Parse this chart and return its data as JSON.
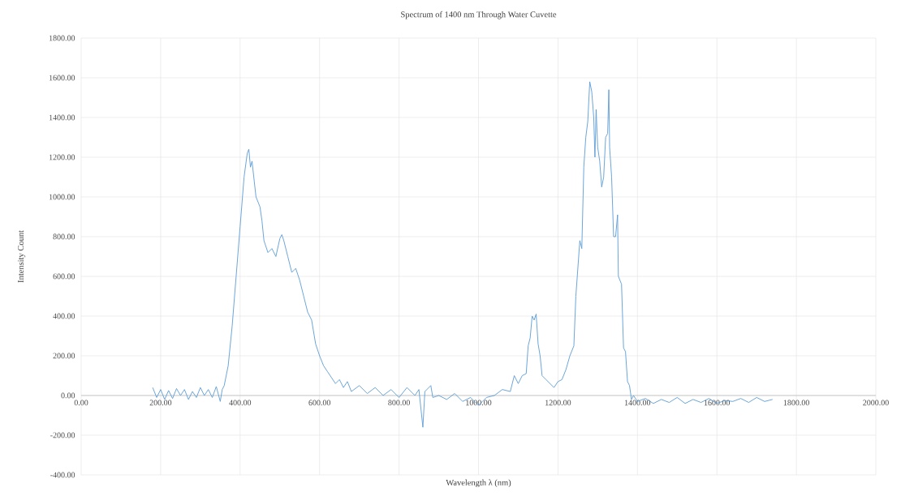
{
  "chart_data": {
    "type": "line",
    "title": "Spectrum of 1400 nm Through Water Cuvette",
    "xlabel": "Wavelength λ (nm)",
    "ylabel": "Intensity Count",
    "xlim": [
      0,
      2000
    ],
    "ylim": [
      -400,
      1800
    ],
    "xticks": [
      {
        "value": 0,
        "label": "0.00"
      },
      {
        "value": 200,
        "label": "200.00"
      },
      {
        "value": 400,
        "label": "400.00"
      },
      {
        "value": 600,
        "label": "600.00"
      },
      {
        "value": 800,
        "label": "800.00"
      },
      {
        "value": 1000,
        "label": "1000.00"
      },
      {
        "value": 1200,
        "label": "1200.00"
      },
      {
        "value": 1400,
        "label": "1400.00"
      },
      {
        "value": 1600,
        "label": "1600.00"
      },
      {
        "value": 1800,
        "label": "1800.00"
      },
      {
        "value": 2000,
        "label": "2000.00"
      }
    ],
    "yticks": [
      {
        "value": -400,
        "label": "-400.00"
      },
      {
        "value": -200,
        "label": "-200.00"
      },
      {
        "value": 0,
        "label": "0.00"
      },
      {
        "value": 200,
        "label": "200.00"
      },
      {
        "value": 400,
        "label": "400.00"
      },
      {
        "value": 600,
        "label": "600.00"
      },
      {
        "value": 800,
        "label": "800.00"
      },
      {
        "value": 1000,
        "label": "1000.00"
      },
      {
        "value": 1200,
        "label": "1200.00"
      },
      {
        "value": 1400,
        "label": "1400.00"
      },
      {
        "value": 1600,
        "label": "1600.00"
      },
      {
        "value": 1800,
        "label": "1800.00"
      }
    ],
    "grid": true,
    "marker": "none",
    "line_style": "solid",
    "series": [
      {
        "color": "#5b9bd5",
        "x": [
          180,
          190,
          200,
          210,
          220,
          230,
          240,
          250,
          260,
          270,
          280,
          290,
          300,
          310,
          320,
          330,
          340,
          350,
          355,
          360,
          370,
          380,
          390,
          400,
          410,
          418,
          422,
          426,
          430,
          440,
          450,
          455,
          460,
          470,
          480,
          490,
          500,
          505,
          510,
          520,
          530,
          540,
          550,
          560,
          570,
          580,
          590,
          600,
          610,
          620,
          630,
          640,
          650,
          660,
          670,
          680,
          700,
          720,
          740,
          760,
          780,
          800,
          820,
          840,
          850,
          860,
          865,
          880,
          885,
          900,
          920,
          940,
          960,
          980,
          1000,
          1010,
          1020,
          1040,
          1060,
          1080,
          1090,
          1100,
          1110,
          1120,
          1125,
          1130,
          1135,
          1140,
          1145,
          1150,
          1155,
          1160,
          1170,
          1180,
          1190,
          1200,
          1210,
          1220,
          1230,
          1240,
          1245,
          1255,
          1260,
          1265,
          1270,
          1275,
          1280,
          1285,
          1290,
          1293,
          1296,
          1300,
          1305,
          1310,
          1315,
          1320,
          1325,
          1328,
          1330,
          1335,
          1340,
          1345,
          1350,
          1352,
          1360,
          1365,
          1370,
          1375,
          1380,
          1385,
          1390,
          1400,
          1420,
          1440,
          1460,
          1480,
          1500,
          1520,
          1540,
          1560,
          1580,
          1600,
          1620,
          1640,
          1660,
          1680,
          1700,
          1720,
          1740
        ],
        "values": [
          40,
          -10,
          30,
          -20,
          25,
          -15,
          35,
          0,
          30,
          -20,
          20,
          -10,
          40,
          0,
          30,
          -10,
          45,
          -30,
          30,
          50,
          150,
          350,
          600,
          850,
          1100,
          1220,
          1240,
          1150,
          1180,
          1000,
          950,
          880,
          780,
          720,
          740,
          700,
          790,
          810,
          780,
          700,
          620,
          640,
          580,
          500,
          420,
          380,
          260,
          200,
          150,
          120,
          90,
          60,
          80,
          40,
          70,
          20,
          50,
          10,
          40,
          0,
          30,
          -10,
          40,
          0,
          30,
          -160,
          20,
          50,
          -10,
          0,
          -20,
          10,
          -30,
          -10,
          -50,
          -30,
          -10,
          0,
          30,
          20,
          100,
          60,
          100,
          110,
          250,
          290,
          400,
          380,
          410,
          260,
          200,
          100,
          80,
          60,
          40,
          70,
          80,
          130,
          200,
          250,
          500,
          780,
          740,
          1150,
          1300,
          1380,
          1580,
          1530,
          1400,
          1200,
          1440,
          1250,
          1180,
          1050,
          1100,
          1300,
          1320,
          1540,
          1250,
          1100,
          800,
          800,
          910,
          600,
          560,
          240,
          220,
          70,
          50,
          -20,
          0,
          -30,
          -15,
          -40,
          -20,
          -35,
          -10,
          -40,
          -20,
          -35,
          -15,
          -40,
          -25,
          -30,
          -15,
          -35,
          -10,
          -30,
          -20
        ]
      }
    ]
  }
}
